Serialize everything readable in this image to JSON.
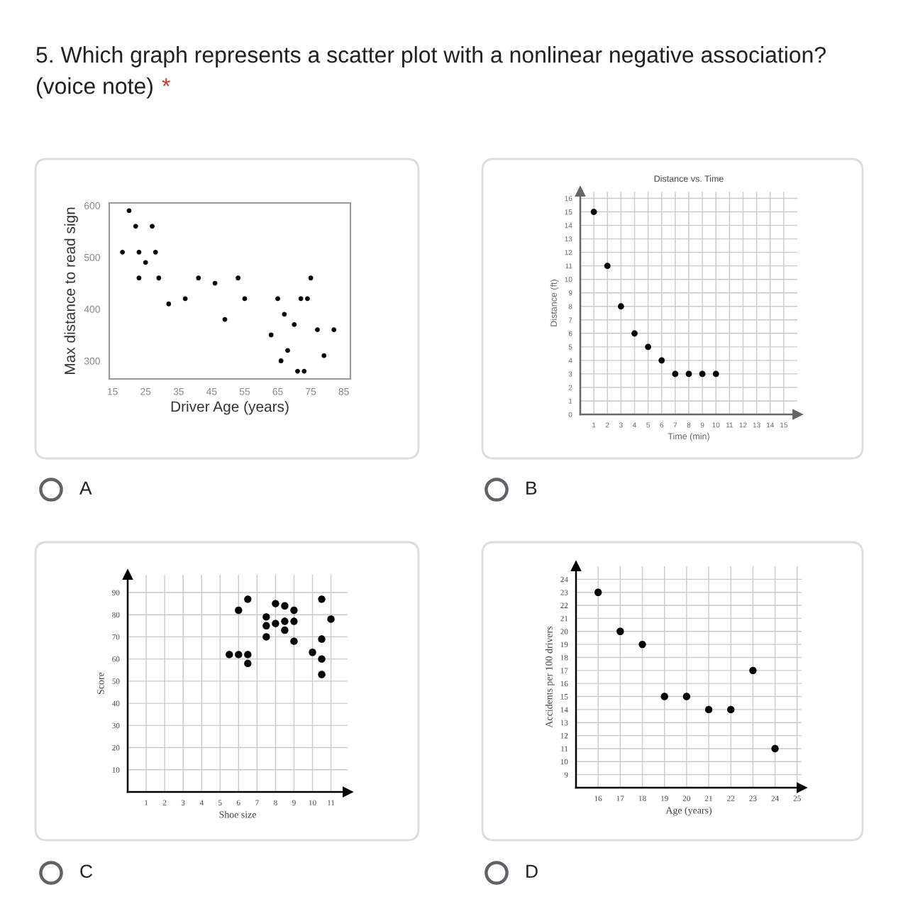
{
  "chart_data": [
    {
      "type": "other",
      "title": "5. Which graph represents a scatter plot with a nonlinear negative association?",
      "annotations": [
        "(voice note)",
        "*"
      ]
    },
    {
      "type": "scatter",
      "xlabel": "Driver Age (years)",
      "ylabel": "Max distance to read sign",
      "xlim": [
        14,
        87
      ],
      "ylim": [
        265,
        605
      ],
      "xticks": [
        15,
        25,
        35,
        45,
        55,
        65,
        75,
        85
      ],
      "yticks": [
        300,
        400,
        500,
        600
      ],
      "grid": false,
      "marker": "circle",
      "annotations": [
        "A"
      ],
      "series": [
        {
          "color": "#000000",
          "x": [
            18,
            20,
            22,
            23,
            23,
            25,
            27,
            28,
            29,
            32,
            37,
            41,
            46,
            49,
            53,
            55,
            63,
            65,
            66,
            67,
            68,
            70,
            71,
            72,
            73,
            74,
            75,
            77,
            79,
            82
          ],
          "values": [
            510,
            590,
            560,
            510,
            460,
            490,
            560,
            510,
            460,
            410,
            420,
            460,
            450,
            380,
            460,
            420,
            350,
            420,
            300,
            390,
            320,
            370,
            280,
            420,
            280,
            420,
            460,
            360,
            310,
            360
          ]
        }
      ]
    },
    {
      "type": "scatter",
      "title": "Distance vs. Time",
      "xlabel": "Time (min)",
      "ylabel": "Distance (ft)",
      "xlim": [
        0,
        16
      ],
      "ylim": [
        0,
        16.5
      ],
      "xticks": [
        1,
        2,
        3,
        4,
        5,
        6,
        7,
        8,
        9,
        10,
        11,
        12,
        13,
        14,
        15
      ],
      "yticks": [
        0,
        1,
        2,
        3,
        4,
        5,
        6,
        7,
        8,
        9,
        10,
        11,
        12,
        13,
        14,
        15,
        16
      ],
      "grid": true,
      "marker": "circle",
      "annotations": [
        "B"
      ],
      "series": [
        {
          "color": "#000000",
          "x": [
            1,
            2,
            3,
            4,
            5,
            6,
            7,
            8,
            9,
            10
          ],
          "values": [
            15,
            11,
            8,
            6,
            5,
            4,
            3,
            3,
            3,
            3
          ]
        }
      ]
    },
    {
      "type": "scatter",
      "xlabel": "Shoe size",
      "ylabel": "Score",
      "xlim": [
        0,
        11.9
      ],
      "ylim": [
        0,
        98
      ],
      "xticks": [
        1,
        2,
        3,
        4,
        5,
        6,
        7,
        8,
        9,
        10,
        11
      ],
      "yticks": [
        10,
        20,
        30,
        40,
        50,
        60,
        70,
        80,
        90
      ],
      "grid": true,
      "marker": "circle",
      "annotations": [
        "C"
      ],
      "series": [
        {
          "color": "#000000",
          "x": [
            5.5,
            6,
            6.5,
            6.5,
            6,
            6.5,
            7.5,
            7.5,
            7.5,
            8,
            8,
            8.5,
            8.5,
            8.5,
            9,
            9,
            9,
            10,
            10.5,
            10.5,
            10.5,
            10.5,
            11
          ],
          "values": [
            62,
            62,
            62,
            58,
            82,
            87,
            79,
            75,
            70,
            85,
            76,
            84,
            77,
            73,
            82,
            77,
            68,
            63,
            87,
            69,
            60,
            53,
            78
          ]
        }
      ]
    },
    {
      "type": "scatter",
      "xlabel": "Age (years)",
      "ylabel": "Accidents per 100 drivers",
      "xlim": [
        15,
        25.2
      ],
      "ylim": [
        8,
        25
      ],
      "xticks": [
        16,
        17,
        18,
        19,
        20,
        21,
        22,
        23,
        24,
        25
      ],
      "yticks": [
        9,
        10,
        11,
        12,
        13,
        14,
        15,
        16,
        17,
        18,
        19,
        20,
        21,
        22,
        23,
        24
      ],
      "grid": true,
      "marker": "circle",
      "annotations": [
        "D"
      ],
      "series": [
        {
          "color": "#000000",
          "x": [
            16,
            17,
            18,
            19,
            20,
            21,
            22,
            23,
            24
          ],
          "values": [
            23,
            20,
            19,
            15,
            15,
            14,
            14,
            17,
            11
          ]
        }
      ]
    }
  ]
}
